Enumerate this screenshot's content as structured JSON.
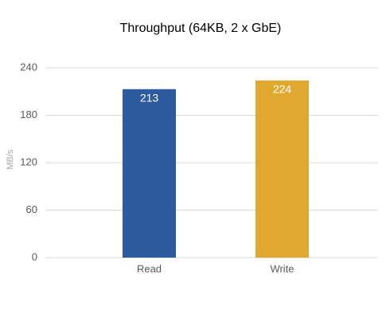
{
  "chart_data": {
    "type": "bar",
    "title": "Throughput (64KB, 2 x GbE)",
    "y_label": "MB/s",
    "categories": [
      "Read",
      "Write"
    ],
    "values": [
      213,
      224
    ],
    "colors": [
      "#2e5b9f",
      "#e0a82e"
    ],
    "ylim": [
      0,
      240
    ],
    "yticks": [
      0,
      60,
      120,
      180,
      240
    ],
    "grid": true
  }
}
